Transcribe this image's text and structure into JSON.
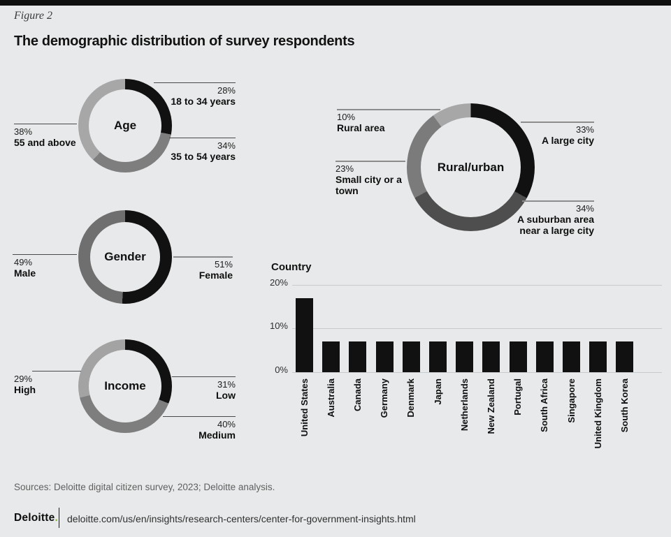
{
  "page": {
    "figure_label": "Figure 2",
    "title": "The demographic distribution of survey respondents",
    "sources": "Sources: Deloitte digital citizen survey, 2023; Deloitte analysis.",
    "brand": "Deloitte",
    "brand_dot": ".",
    "brand_dot_color": "#86bc25",
    "footer_url": "deloitte.com/us/en/insights/research-centers/center-for-government-insights.html",
    "background": "#e8e9ea"
  },
  "chart_data": [
    {
      "id": "age",
      "type": "pie",
      "subtype": "donut",
      "title": "Age",
      "segments": [
        {
          "label": "18 to 34 years",
          "value": 28,
          "pct": "28%",
          "color": "#111111"
        },
        {
          "label": "35 to 54 years",
          "value": 34,
          "pct": "34%",
          "color": "#7e7e7e"
        },
        {
          "label": "55 and above",
          "value": 38,
          "pct": "38%",
          "color": "#a7a7a7"
        }
      ]
    },
    {
      "id": "gender",
      "type": "pie",
      "subtype": "donut",
      "title": "Gender",
      "segments": [
        {
          "label": "Female",
          "value": 51,
          "pct": "51%",
          "color": "#111111"
        },
        {
          "label": "Male",
          "value": 49,
          "pct": "49%",
          "color": "#6f6f6f"
        }
      ]
    },
    {
      "id": "income",
      "type": "pie",
      "subtype": "donut",
      "title": "Income",
      "segments": [
        {
          "label": "Low",
          "value": 31,
          "pct": "31%",
          "color": "#111111"
        },
        {
          "label": "Medium",
          "value": 40,
          "pct": "40%",
          "color": "#7e7e7e"
        },
        {
          "label": "High",
          "value": 29,
          "pct": "29%",
          "color": "#a3a3a3"
        }
      ]
    },
    {
      "id": "rural_urban",
      "type": "pie",
      "subtype": "donut",
      "title": "Rural/urban",
      "segments": [
        {
          "label": "A large city",
          "value": 33,
          "pct": "33%",
          "color": "#111111"
        },
        {
          "label": "A suburban area near a large city",
          "value": 34,
          "pct": "34%",
          "color": "#4e4e4e"
        },
        {
          "label": "Small city or a town",
          "value": 23,
          "pct": "23%",
          "color": "#7b7b7b"
        },
        {
          "label": "Rural area",
          "value": 10,
          "pct": "10%",
          "color": "#a7a7a7"
        }
      ]
    },
    {
      "id": "country",
      "type": "bar",
      "title": "Country",
      "categories": [
        "United States",
        "Australia",
        "Canada",
        "Germany",
        "Denmark",
        "Japan",
        "Netherlands",
        "New Zealand",
        "Portugal",
        "South Africa",
        "Singapore",
        "United Kingdom",
        "South Korea"
      ],
      "values": [
        17,
        7,
        7,
        7,
        7,
        7,
        7,
        7,
        7,
        7,
        7,
        7,
        7
      ],
      "yticks": [
        "20%",
        "10%",
        "0%"
      ],
      "ylim": [
        0,
        20
      ],
      "grid": true,
      "bar_color": "#111111"
    }
  ]
}
